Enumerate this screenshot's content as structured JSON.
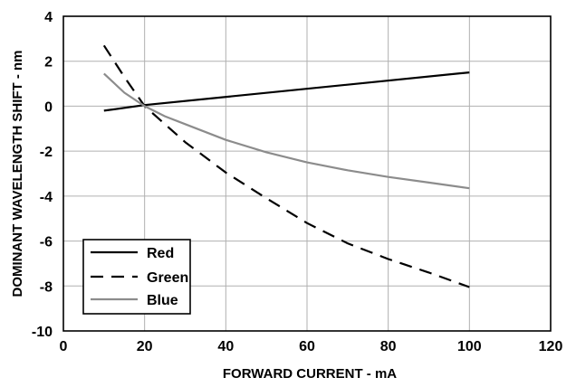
{
  "chart_data": {
    "type": "line",
    "xlabel": "FORWARD CURRENT - mA",
    "ylabel": "DOMINANT WAVELENGTH SHIFT - nm",
    "xlim": [
      0,
      120
    ],
    "ylim": [
      -10,
      4
    ],
    "xticks": [
      "0",
      "20",
      "40",
      "60",
      "80",
      "100",
      "120"
    ],
    "yticks": [
      "4",
      "2",
      "0",
      "-2",
      "-4",
      "-6",
      "-8",
      "-10"
    ],
    "grid": true,
    "legend_position": "bottom-left",
    "series": [
      {
        "name": "Red",
        "color": "#000000",
        "dash": "solid",
        "x": [
          10,
          20,
          100
        ],
        "y": [
          -0.2,
          0.05,
          1.5
        ]
      },
      {
        "name": "Green",
        "color": "#000000",
        "dash": "dashed",
        "x": [
          10,
          15,
          20,
          30,
          40,
          50,
          60,
          70,
          80,
          90,
          100
        ],
        "y": [
          2.7,
          1.3,
          0.0,
          -1.6,
          -2.95,
          -4.1,
          -5.2,
          -6.1,
          -6.8,
          -7.4,
          -8.05
        ]
      },
      {
        "name": "Blue",
        "color": "#8c8c8c",
        "dash": "solid",
        "x": [
          10,
          15,
          20,
          25,
          30,
          40,
          50,
          60,
          70,
          80,
          90,
          100
        ],
        "y": [
          1.45,
          0.6,
          0.0,
          -0.45,
          -0.8,
          -1.5,
          -2.05,
          -2.5,
          -2.85,
          -3.15,
          -3.4,
          -3.65
        ]
      }
    ]
  }
}
